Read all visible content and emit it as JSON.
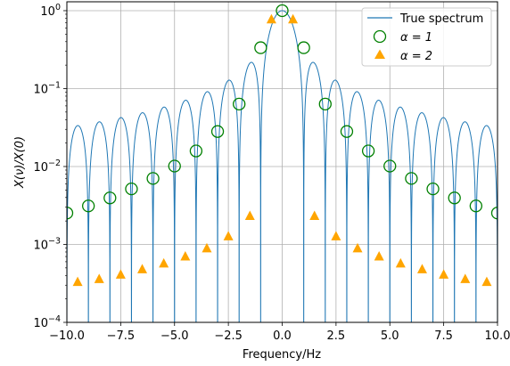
{
  "chart_data": {
    "type": "line",
    "title": "",
    "xlabel": "Frequency/Hz",
    "ylabel": "X(ν)/X(0)",
    "xlim": [
      -10,
      10
    ],
    "ylim": [
      0.0001,
      1.3
    ],
    "yscale": "log",
    "grid": true,
    "legend_position": "top-right",
    "x_ticks": [
      -10,
      -7.5,
      -5,
      -2.5,
      0,
      2.5,
      5,
      7.5,
      10
    ],
    "x_tick_labels": [
      "−10.0",
      "−7.5",
      "−5.0",
      "−2.5",
      "0.0",
      "2.5",
      "5.0",
      "7.5",
      "10.0"
    ],
    "y_ticks": [
      0.0001,
      0.001,
      0.01,
      0.1,
      1
    ],
    "y_tick_labels": [
      {
        "base": "10",
        "exp": "−4"
      },
      {
        "base": "10",
        "exp": "−3"
      },
      {
        "base": "10",
        "exp": "−2"
      },
      {
        "base": "10",
        "exp": "−1"
      },
      {
        "base": "10",
        "exp": "0"
      }
    ],
    "series": [
      {
        "name": "True spectrum",
        "marker": "line",
        "color": "#1f77b4",
        "function": "|sinc(nu)|"
      },
      {
        "name": "α = 1",
        "marker": "open-circle",
        "color": "#008000",
        "x": [
          -10,
          -9,
          -8,
          -7,
          -6,
          -5,
          -4,
          -3,
          -2,
          -1,
          0,
          1,
          2,
          3,
          4,
          5,
          6,
          7,
          8,
          9,
          10
        ],
        "y": [
          0.00253,
          0.00312,
          0.00395,
          0.00516,
          0.00703,
          0.01013,
          0.01583,
          0.02814,
          0.06333,
          0.3346,
          1.0,
          0.3346,
          0.06333,
          0.02814,
          0.01583,
          0.01013,
          0.00703,
          0.00516,
          0.00395,
          0.00312,
          0.00253
        ]
      },
      {
        "name": "α = 2",
        "marker": "triangle",
        "color": "#ffa500",
        "x": [
          -9.5,
          -8.5,
          -7.5,
          -6.5,
          -5.5,
          -4.5,
          -3.5,
          -2.5,
          -1.5,
          -0.5,
          0.5,
          1.5,
          2.5,
          3.5,
          4.5,
          5.5,
          6.5,
          7.5,
          8.5,
          9.5
        ],
        "y": [
          0.00033,
          0.00036,
          0.00041,
          0.00048,
          0.00057,
          0.0007,
          0.00089,
          0.00127,
          0.00232,
          0.7725,
          0.7725,
          0.00232,
          0.00127,
          0.00089,
          0.0007,
          0.00057,
          0.00048,
          0.00041,
          0.00036,
          0.00033
        ]
      }
    ],
    "legend_entries": [
      "True spectrum",
      "α = 1",
      "α = 2"
    ]
  }
}
